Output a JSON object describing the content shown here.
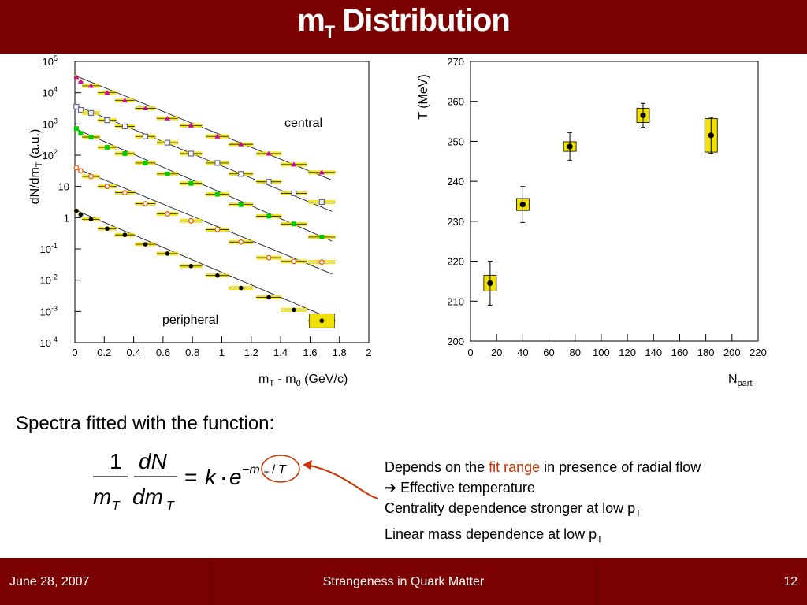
{
  "slide": {
    "title_main": "m",
    "title_sub": "T",
    "title_rest": " Distribution",
    "subtitle": "Spectra fitted with the function:",
    "notes": {
      "line1_pre": "Depends on the ",
      "line1_red": "fit range",
      "line1_post": " in presence of radial flow",
      "line2_arrow": "➔",
      "line2": " Effective temperature",
      "line3": "Centrality dependence stronger at low p",
      "line3_sub": "T",
      "line4": "Linear mass dependence at low p",
      "line4_sub": "T"
    },
    "footer": {
      "date": "June 28, 2007",
      "title": "Strangeness in Quark Matter",
      "page": "12"
    },
    "colors": {
      "bar": "#7b0000",
      "accent": "#cc3300",
      "highlight": "#f0e000"
    }
  },
  "chart_data": [
    {
      "type": "scatter",
      "log_y": true,
      "ylabel": "dN/dm",
      "ylabel_sub": "T",
      "ylabel_rest": " (a.u.)",
      "xlabel": "m",
      "xlabel_sub": "T",
      "xlabel_mid": " - m",
      "xlabel_sub2": "0",
      "xlabel_rest": " (GeV/c)",
      "xlim": [
        0,
        2
      ],
      "ylim_exp": [
        -4,
        5
      ],
      "xticks": [
        "0",
        "0.2",
        "0.4",
        "0.6",
        "0.8",
        "1",
        "1.2",
        "1.4",
        "1.6",
        "1.8",
        "2"
      ],
      "yticks": [
        {
          "base": "10",
          "exp": "-4"
        },
        {
          "base": "10",
          "exp": "-3"
        },
        {
          "base": "10",
          "exp": "-2"
        },
        {
          "base": "10",
          "exp": "-1"
        },
        {
          "base": "1",
          "exp": ""
        },
        {
          "base": "10",
          "exp": ""
        },
        {
          "base": "10",
          "exp": "2"
        },
        {
          "base": "10",
          "exp": "3"
        },
        {
          "base": "10",
          "exp": "4"
        },
        {
          "base": "10",
          "exp": "5"
        }
      ],
      "annotations": {
        "top": "central",
        "bottom": "peripheral"
      },
      "x": [
        0.01,
        0.04,
        0.11,
        0.22,
        0.34,
        0.48,
        0.63,
        0.79,
        0.97,
        1.13,
        1.32,
        1.49,
        1.68
      ],
      "series": [
        {
          "marker": "triangle",
          "color": "#cc00aa",
          "log10_values": [
            4.5,
            4.35,
            4.22,
            4.0,
            3.75,
            3.5,
            3.18,
            2.95,
            2.6,
            2.35,
            2.05,
            1.7,
            1.45
          ]
        },
        {
          "marker": "square",
          "color": "#666699",
          "log10_values": [
            3.55,
            3.45,
            3.35,
            3.12,
            2.92,
            2.6,
            2.4,
            2.05,
            1.75,
            1.4,
            1.15,
            0.78,
            0.5
          ]
        },
        {
          "marker": "square-filled",
          "color": "#00cc00",
          "log10_values": [
            2.85,
            2.7,
            2.58,
            2.25,
            2.05,
            1.75,
            1.4,
            1.1,
            0.75,
            0.42,
            0.05,
            -0.2,
            -0.62
          ]
        },
        {
          "marker": "circle",
          "color": "#ee5500",
          "log10_values": [
            1.6,
            1.5,
            1.32,
            1.0,
            0.8,
            0.45,
            0.12,
            -0.1,
            -0.38,
            -0.78,
            -1.28,
            -1.4,
            -1.42
          ]
        },
        {
          "marker": "dot",
          "color": "#000000",
          "log10_values": [
            0.22,
            0.1,
            -0.05,
            -0.35,
            -0.55,
            -0.85,
            -1.15,
            -1.55,
            -1.85,
            -2.25,
            -2.55,
            -2.95,
            -3.3
          ]
        }
      ],
      "fits": [
        {
          "x": [
            0,
            1.75
          ],
          "log10": [
            4.55,
            1.2
          ]
        },
        {
          "x": [
            0,
            1.75
          ],
          "log10": [
            3.6,
            0.2
          ]
        },
        {
          "x": [
            0,
            1.75
          ],
          "log10": [
            2.85,
            -0.75
          ]
        },
        {
          "x": [
            0,
            1.75
          ],
          "log10": [
            1.6,
            -1.8
          ]
        },
        {
          "x": [
            0,
            1.75
          ],
          "log10": [
            0.25,
            -3.25
          ]
        }
      ]
    },
    {
      "type": "scatter",
      "ylabel": "T (MeV)",
      "xlabel": "N",
      "xlabel_sub": "part",
      "xlim": [
        0,
        220
      ],
      "ylim": [
        200,
        270
      ],
      "xticks": [
        "0",
        "20",
        "40",
        "60",
        "80",
        "100",
        "120",
        "140",
        "160",
        "180",
        "200",
        "220"
      ],
      "yticks": [
        "200",
        "210",
        "220",
        "230",
        "240",
        "250",
        "260",
        "270"
      ],
      "points": [
        {
          "x": 15,
          "y": 214.5,
          "err": 5.5,
          "sys": 2
        },
        {
          "x": 40,
          "y": 234.2,
          "err": 4.5,
          "sys": 1.5
        },
        {
          "x": 76,
          "y": 248.7,
          "err": 3.5,
          "sys": 1.2
        },
        {
          "x": 132,
          "y": 256.5,
          "err": 3.0,
          "sys": 1.8
        },
        {
          "x": 184,
          "y": 251.5,
          "err": 4.5,
          "sys": 4.2
        }
      ]
    }
  ],
  "formula": {
    "one": "1",
    "m": "m",
    "T": "T",
    "dN": "dN",
    "dm": "dm",
    "eq": "=",
    "k": "k",
    "dot": "·",
    "e": "e",
    "exp_minus": "−m",
    "slash": "/",
    "T_den": "T"
  }
}
